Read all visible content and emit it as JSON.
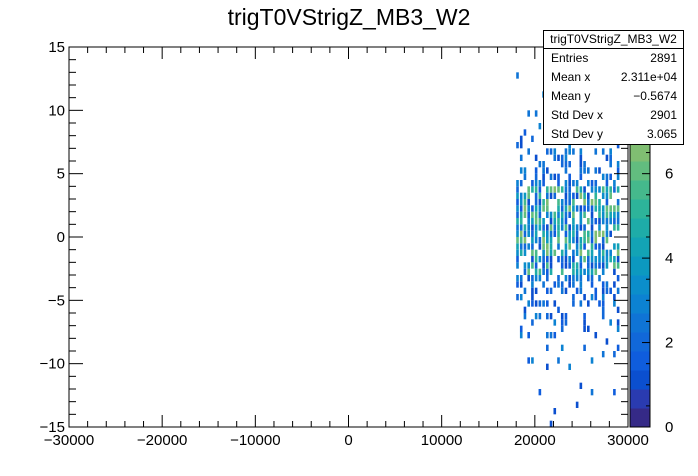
{
  "chart_data": {
    "type": "heatmap",
    "title": "trigT0VStrigZ_MB3_W2",
    "xlabel": "",
    "ylabel": "",
    "xlim": [
      -30000,
      30000
    ],
    "ylim": [
      -15,
      15
    ],
    "x_ticks": [
      -30000,
      -20000,
      -10000,
      0,
      10000,
      20000,
      30000
    ],
    "x_tick_labels": [
      "−30000",
      "−20000",
      "−10000",
      "0",
      "10000",
      "20000",
      "30000"
    ],
    "y_ticks": [
      -15,
      -10,
      -5,
      0,
      5,
      10,
      15
    ],
    "y_tick_labels": [
      "−15",
      "−10",
      "−5",
      "0",
      "5",
      "10",
      "15"
    ],
    "z_range": [
      0,
      9
    ],
    "z_ticks": [
      0,
      2,
      4,
      6,
      8
    ],
    "z_tick_labels": [
      "0",
      "2",
      "4",
      "6",
      "8"
    ],
    "palette": [
      "#352a87",
      "#2a3bb0",
      "#0b4fcf",
      "#0f5ddd",
      "#1168d9",
      "#0f74d6",
      "#0c82d2",
      "#0b8ecb",
      "#0c99c0",
      "#13a3b5",
      "#1eaca8",
      "#2db49a",
      "#45b98c",
      "#62bd7f",
      "#80be72",
      "#9dbd66",
      "#b8bb5a",
      "#cdb850",
      "#ddb84a",
      "#e8bd43"
    ],
    "density": {
      "x_range": [
        18000,
        29000
      ],
      "core_y_range": [
        -3,
        4
      ],
      "peak_count": 8,
      "tails_y_range": [
        -15,
        13
      ]
    },
    "stats": {
      "name": "trigT0VStrigZ_MB3_W2",
      "rows": [
        {
          "label": "Entries",
          "value": "2891"
        },
        {
          "label": "Mean x",
          "value": "2.311e+04"
        },
        {
          "label": "Mean y",
          "value": "−0.5674"
        },
        {
          "label": "Std Dev x",
          "value": "2901"
        },
        {
          "label": "Std Dev y",
          "value": "3.065"
        }
      ]
    }
  }
}
